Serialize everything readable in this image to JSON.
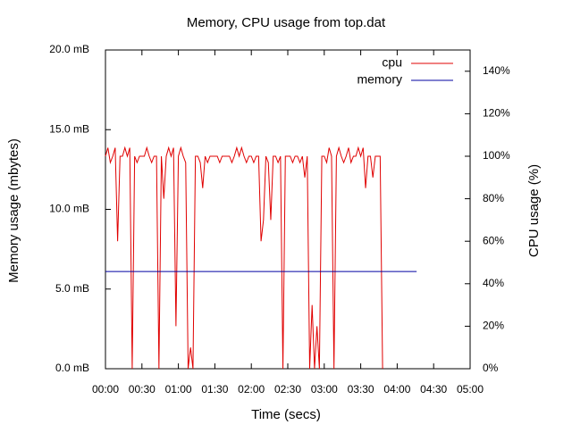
{
  "chart_data": {
    "type": "line",
    "title": "Memory, CPU usage from top.dat",
    "x_label": "Time (secs)",
    "y_label": "Memory usage (mbytes)",
    "y2_label": "CPU usage (%)",
    "xlim": [
      0,
      300
    ],
    "xticks": [
      {
        "value": 0,
        "label": "00:00"
      },
      {
        "value": 30,
        "label": "00:30"
      },
      {
        "value": 60,
        "label": "01:00"
      },
      {
        "value": 90,
        "label": "01:30"
      },
      {
        "value": 120,
        "label": "02:00"
      },
      {
        "value": 150,
        "label": "02:30"
      },
      {
        "value": 180,
        "label": "03:00"
      },
      {
        "value": 210,
        "label": "03:30"
      },
      {
        "value": 240,
        "label": "04:00"
      },
      {
        "value": 270,
        "label": "04:30"
      },
      {
        "value": 300,
        "label": "05:00"
      }
    ],
    "ylim": [
      0,
      20
    ],
    "yticks": [
      {
        "value": 0,
        "label": "0.0 mB"
      },
      {
        "value": 5,
        "label": "5.0 mB"
      },
      {
        "value": 10,
        "label": "10.0 mB"
      },
      {
        "value": 15,
        "label": "15.0 mB"
      },
      {
        "value": 20,
        "label": "20.0 mB"
      }
    ],
    "y2lim": [
      0,
      150
    ],
    "y2ticks": [
      {
        "value": 0,
        "label": "0%"
      },
      {
        "value": 20,
        "label": "20%"
      },
      {
        "value": 40,
        "label": "40%"
      },
      {
        "value": 60,
        "label": "60%"
      },
      {
        "value": 80,
        "label": "80%"
      },
      {
        "value": 100,
        "label": "100%"
      },
      {
        "value": 120,
        "label": "120%"
      },
      {
        "value": 140,
        "label": "140%"
      }
    ],
    "legend": "top-right",
    "series": [
      {
        "name": "cpu",
        "color": "#e00000",
        "axis": "y2",
        "x": [
          0,
          2,
          4,
          6,
          8,
          10,
          12,
          14,
          16,
          18,
          20,
          22,
          24,
          26,
          28,
          30,
          32,
          34,
          36,
          38,
          40,
          42,
          44,
          46,
          48,
          50,
          52,
          54,
          56,
          58,
          60,
          62,
          64,
          66,
          68,
          70,
          72,
          74,
          76,
          78,
          80,
          82,
          84,
          86,
          88,
          90,
          92,
          94,
          96,
          98,
          100,
          102,
          104,
          106,
          108,
          110,
          112,
          114,
          116,
          118,
          120,
          122,
          124,
          126,
          128,
          130,
          132,
          134,
          136,
          138,
          140,
          142,
          144,
          146,
          148,
          150,
          152,
          154,
          156,
          158,
          160,
          162,
          164,
          166,
          168,
          170,
          172,
          174,
          176,
          178,
          180,
          182,
          184,
          186,
          188,
          190,
          192,
          194,
          196,
          198,
          200,
          202,
          204,
          206,
          208,
          210,
          212,
          214,
          216,
          218,
          220,
          222,
          224,
          226,
          228
        ],
        "values": [
          100,
          104,
          97,
          100,
          104,
          60,
          100,
          100,
          104,
          100,
          104,
          0,
          100,
          97,
          100,
          100,
          100,
          104,
          100,
          97,
          100,
          100,
          0,
          100,
          80,
          100,
          104,
          100,
          104,
          20,
          100,
          104,
          100,
          97,
          0,
          10,
          0,
          100,
          100,
          97,
          85,
          100,
          97,
          100,
          100,
          100,
          100,
          97,
          100,
          100,
          100,
          100,
          97,
          100,
          104,
          100,
          104,
          100,
          97,
          100,
          100,
          97,
          100,
          100,
          60,
          70,
          100,
          97,
          70,
          100,
          100,
          97,
          100,
          0,
          100,
          100,
          100,
          97,
          100,
          100,
          97,
          100,
          90,
          100,
          0,
          30,
          0,
          20,
          0,
          100,
          100,
          97,
          104,
          100,
          0,
          100,
          104,
          100,
          97,
          100,
          104,
          97,
          100,
          100,
          104,
          100,
          104,
          85,
          100,
          100,
          90,
          100,
          100,
          100,
          0
        ]
      },
      {
        "name": "memory",
        "color": "#0000a0",
        "axis": "y",
        "x": [
          0,
          256
        ],
        "values": [
          6.1,
          6.1
        ]
      }
    ]
  }
}
